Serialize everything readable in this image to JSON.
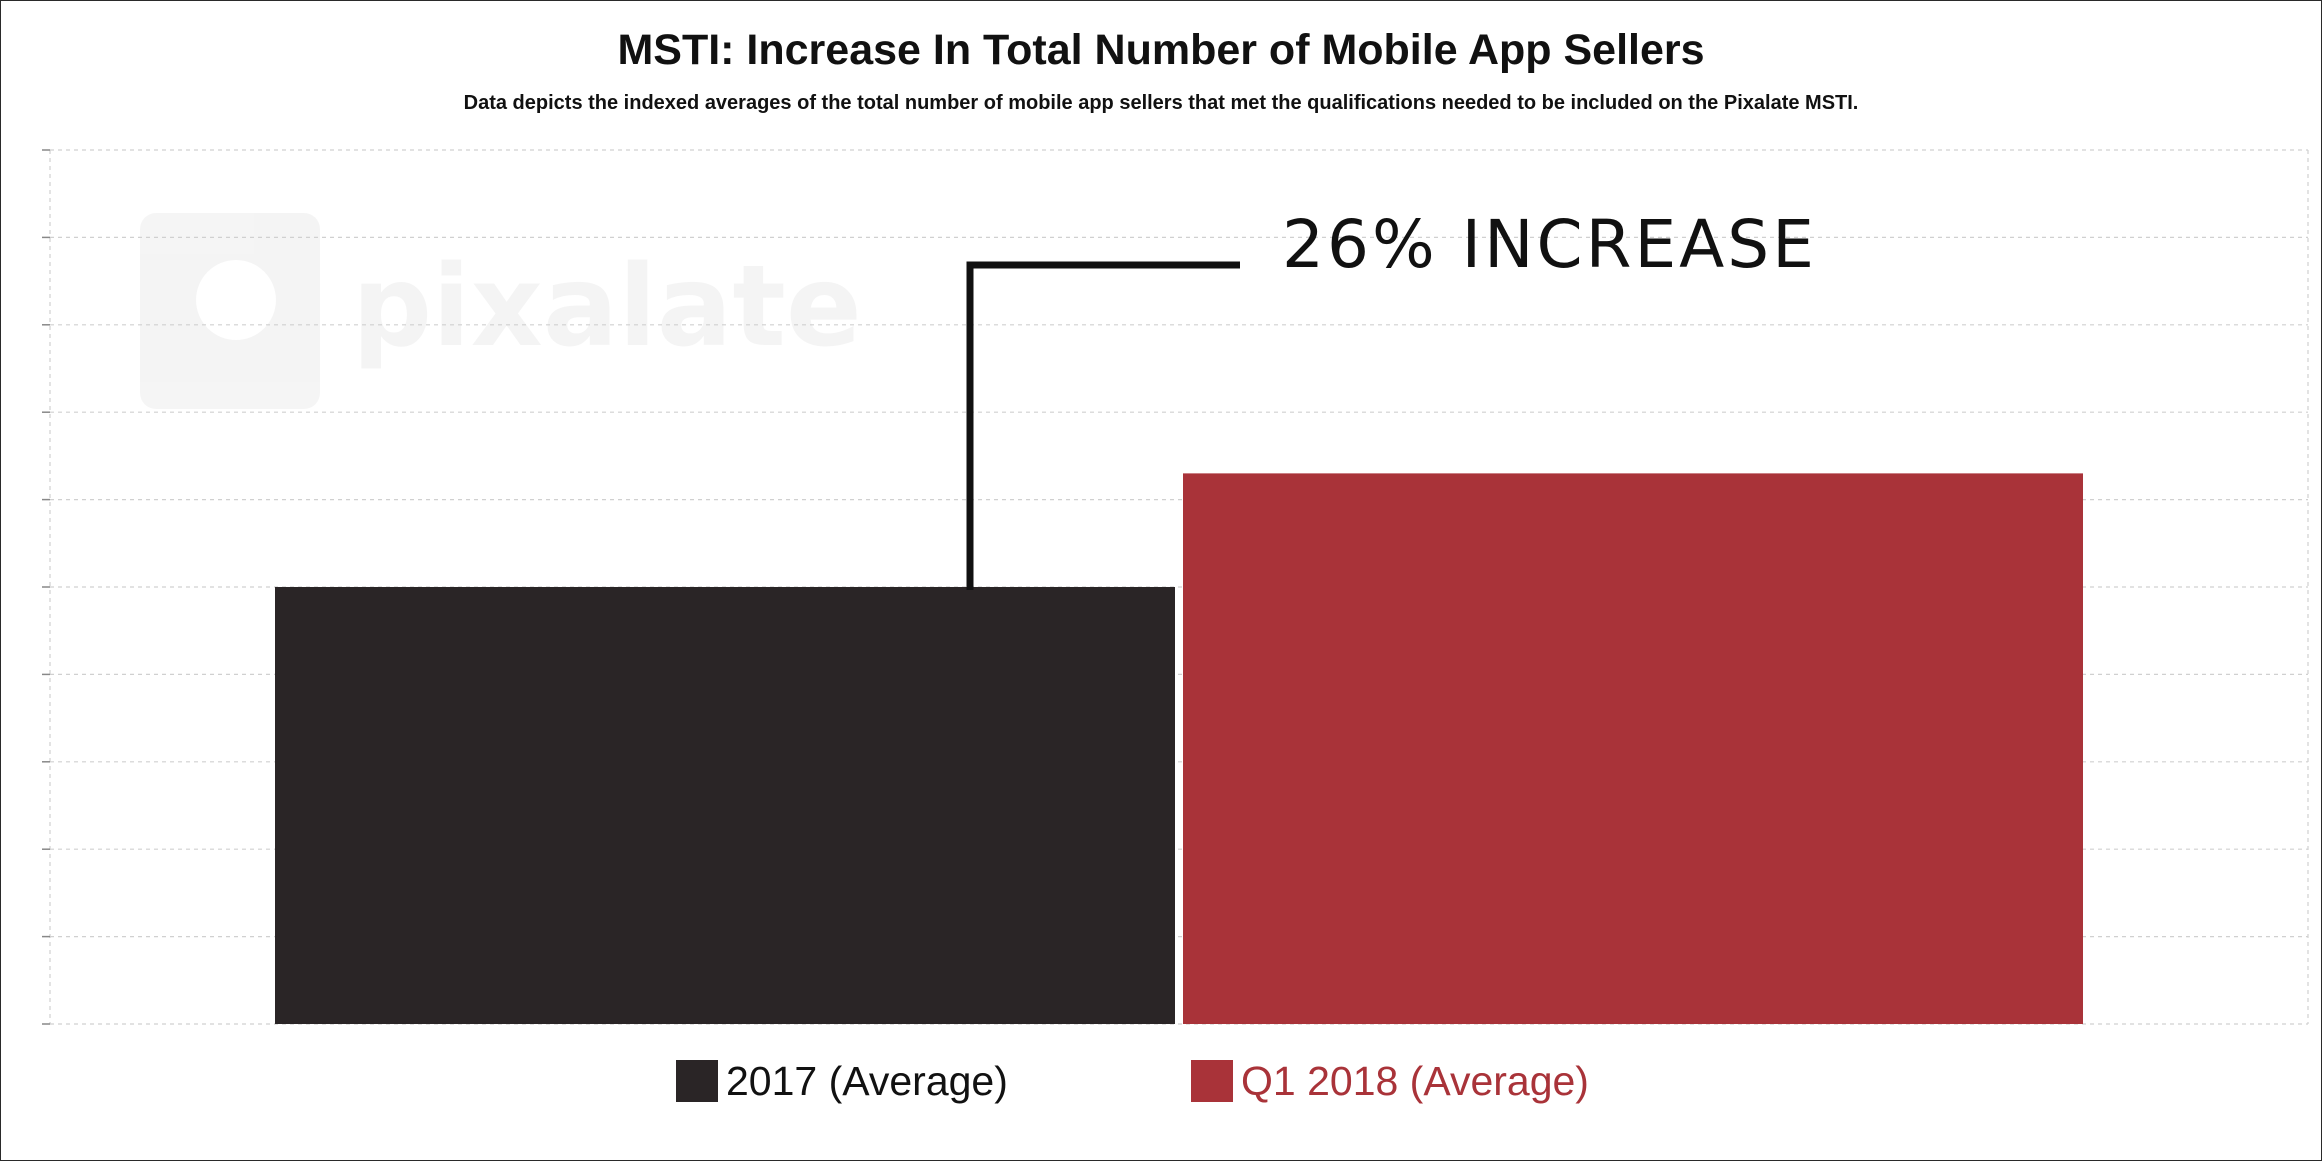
{
  "chart_data": {
    "type": "bar",
    "title": "MSTI: Increase In Total Number of Mobile App Sellers",
    "subtitle": "Data depicts the indexed averages of the total number of mobile app sellers that met the qualifications needed to be included on the Pixalate MSTI.",
    "categories": [
      "2017 (Average)",
      "Q1 2018 (Average)"
    ],
    "values": [
      100,
      126
    ],
    "colors": [
      "#2a2526",
      "#a93339"
    ],
    "ylim": [
      0,
      200
    ],
    "y_ticks_labeled": false,
    "grid": true,
    "annotation": "26% INCREASE",
    "legend": {
      "placement": "bottom",
      "entries": [
        {
          "label": "2017 (Average)",
          "color": "#2a2526",
          "text_color": "#111111"
        },
        {
          "label": "Q1 2018 (Average)",
          "color": "#a93339",
          "text_color": "#a93339"
        }
      ]
    },
    "watermark": "pixalate"
  }
}
